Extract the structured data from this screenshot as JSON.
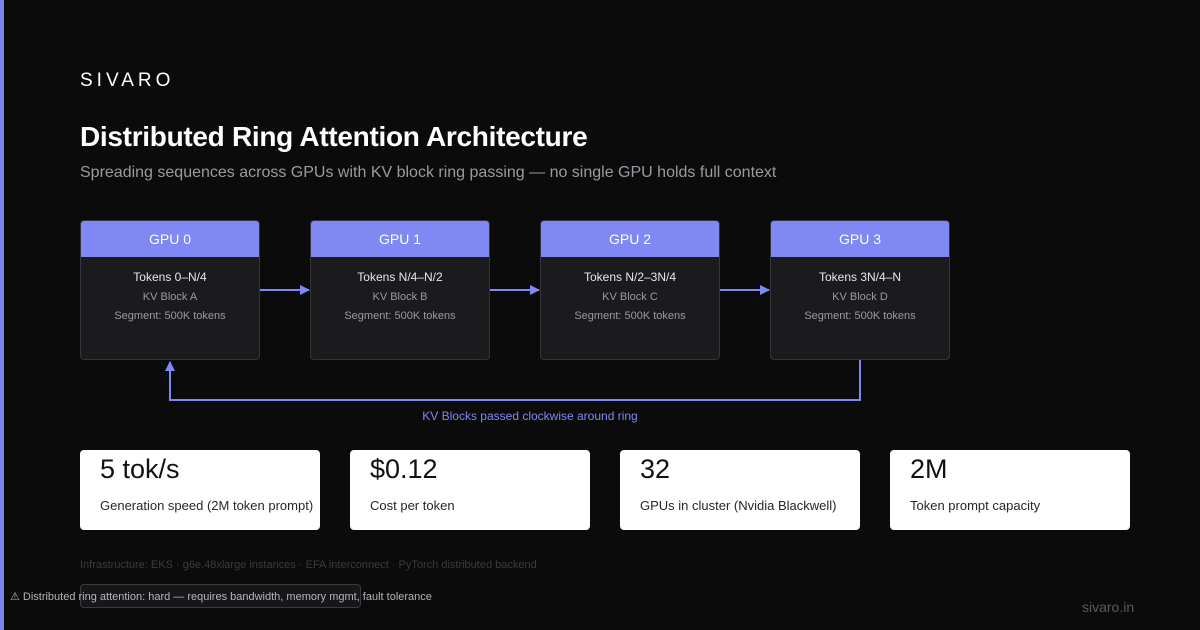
{
  "brand": "SIVARO",
  "title": "Distributed Ring Attention Architecture",
  "subtitle": "Spreading sequences across GPUs with KV block ring passing — no single GPU holds full context",
  "gpus": [
    {
      "label": "GPU 0",
      "tokens": "Tokens 0–N/4",
      "block": "KV Block A",
      "segment": "Segment: 500K tokens"
    },
    {
      "label": "GPU 1",
      "tokens": "Tokens N/4–N/2",
      "block": "KV Block B",
      "segment": "Segment: 500K tokens"
    },
    {
      "label": "GPU 2",
      "tokens": "Tokens N/2–3N/4",
      "block": "KV Block C",
      "segment": "Segment: 500K tokens"
    },
    {
      "label": "GPU 3",
      "tokens": "Tokens 3N/4–N",
      "block": "KV Block D",
      "segment": "Segment: 500K tokens"
    }
  ],
  "ring_caption": "KV Blocks passed clockwise around ring",
  "stats": [
    {
      "value": "5 tok/s",
      "label": "Generation speed (2M token prompt)"
    },
    {
      "value": "$0.12",
      "label": "Cost per token"
    },
    {
      "value": "32",
      "label": "GPUs in cluster (Nvidia Blackwell)"
    },
    {
      "value": "2M",
      "label": "Token prompt capacity"
    }
  ],
  "infrastructure": "Infrastructure: EKS · g6e.48xlarge instances · EFA interconnect · PyTorch distributed backend",
  "warning": {
    "icon": "warning-icon",
    "text": "Distributed ring attention: hard — requires bandwidth, memory mgmt, fault tolerance"
  },
  "footer_url": "sivaro.in",
  "colors": {
    "accent": "#7f88f3",
    "background": "#0b0b0c",
    "card": "#1b1b1e"
  }
}
